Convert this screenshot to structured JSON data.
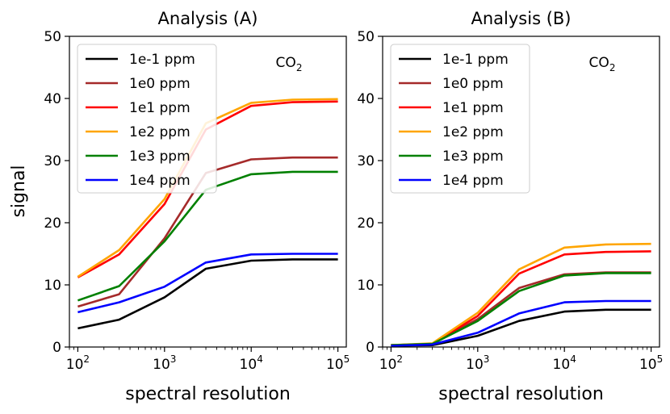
{
  "figure": {
    "ylabel": "signal"
  },
  "chart_data": [
    {
      "type": "line",
      "title": "Analysis (A)",
      "annotation": {
        "main": "CO",
        "sub": "2"
      },
      "xlabel": "spectral resolution",
      "ylabel": "signal",
      "xscale": "log",
      "xlim": [
        80,
        125000
      ],
      "ylim": [
        0,
        50
      ],
      "xticks": [
        {
          "value": 100,
          "base": "10",
          "exp": "2"
        },
        {
          "value": 1000,
          "base": "10",
          "exp": "3"
        },
        {
          "value": 10000,
          "base": "10",
          "exp": "4"
        },
        {
          "value": 100000,
          "base": "10",
          "exp": "5"
        }
      ],
      "yticks": [
        "0",
        "10",
        "20",
        "30",
        "40",
        "50"
      ],
      "legend_position": "upper-left",
      "x": [
        100,
        300,
        1000,
        3000,
        10000,
        30000,
        100000
      ],
      "series": [
        {
          "name": "1e-1 ppm",
          "color": "#000000",
          "values": [
            3.0,
            4.4,
            8.0,
            12.6,
            13.9,
            14.1,
            14.1
          ]
        },
        {
          "name": "1e0 ppm",
          "color": "#a52a2a",
          "values": [
            6.5,
            8.5,
            17.5,
            28.0,
            30.2,
            30.5,
            30.5
          ]
        },
        {
          "name": "1e1 ppm",
          "color": "#ff0000",
          "values": [
            11.2,
            14.9,
            23.0,
            35.0,
            38.8,
            39.4,
            39.5
          ]
        },
        {
          "name": "1e2 ppm",
          "color": "#ffa500",
          "values": [
            11.3,
            15.6,
            23.8,
            36.0,
            39.3,
            39.8,
            39.9
          ]
        },
        {
          "name": "1e3 ppm",
          "color": "#008000",
          "values": [
            7.5,
            9.8,
            17.0,
            25.3,
            27.8,
            28.2,
            28.2
          ]
        },
        {
          "name": "1e4 ppm",
          "color": "#0000ff",
          "values": [
            5.6,
            7.2,
            9.7,
            13.6,
            14.9,
            15.0,
            15.0
          ]
        }
      ]
    },
    {
      "type": "line",
      "title": "Analysis (B)",
      "annotation": {
        "main": "CO",
        "sub": "2"
      },
      "xlabel": "spectral resolution",
      "ylabel": "",
      "xscale": "log",
      "xlim": [
        80,
        125000
      ],
      "ylim": [
        0,
        50
      ],
      "xticks": [
        {
          "value": 100,
          "base": "10",
          "exp": "2"
        },
        {
          "value": 1000,
          "base": "10",
          "exp": "3"
        },
        {
          "value": 10000,
          "base": "10",
          "exp": "4"
        },
        {
          "value": 100000,
          "base": "10",
          "exp": "5"
        }
      ],
      "yticks": [
        "0",
        "10",
        "20",
        "30",
        "40",
        "50"
      ],
      "legend_position": "upper-left",
      "x": [
        100,
        300,
        1000,
        3000,
        10000,
        30000,
        100000
      ],
      "series": [
        {
          "name": "1e-1 ppm",
          "color": "#000000",
          "values": [
            0.2,
            0.3,
            1.8,
            4.2,
            5.7,
            6.0,
            6.0
          ]
        },
        {
          "name": "1e0 ppm",
          "color": "#a52a2a",
          "values": [
            0.3,
            0.5,
            4.5,
            9.5,
            11.7,
            12.0,
            12.0
          ]
        },
        {
          "name": "1e1 ppm",
          "color": "#ff0000",
          "values": [
            0.3,
            0.5,
            5.0,
            11.8,
            14.9,
            15.3,
            15.4
          ]
        },
        {
          "name": "1e2 ppm",
          "color": "#ffa500",
          "values": [
            0.3,
            0.6,
            5.5,
            12.5,
            16.0,
            16.5,
            16.6
          ]
        },
        {
          "name": "1e3 ppm",
          "color": "#008000",
          "values": [
            0.3,
            0.5,
            4.2,
            9.0,
            11.5,
            11.9,
            11.9
          ]
        },
        {
          "name": "1e4 ppm",
          "color": "#0000ff",
          "values": [
            0.2,
            0.4,
            2.3,
            5.4,
            7.2,
            7.4,
            7.4
          ]
        }
      ]
    }
  ]
}
